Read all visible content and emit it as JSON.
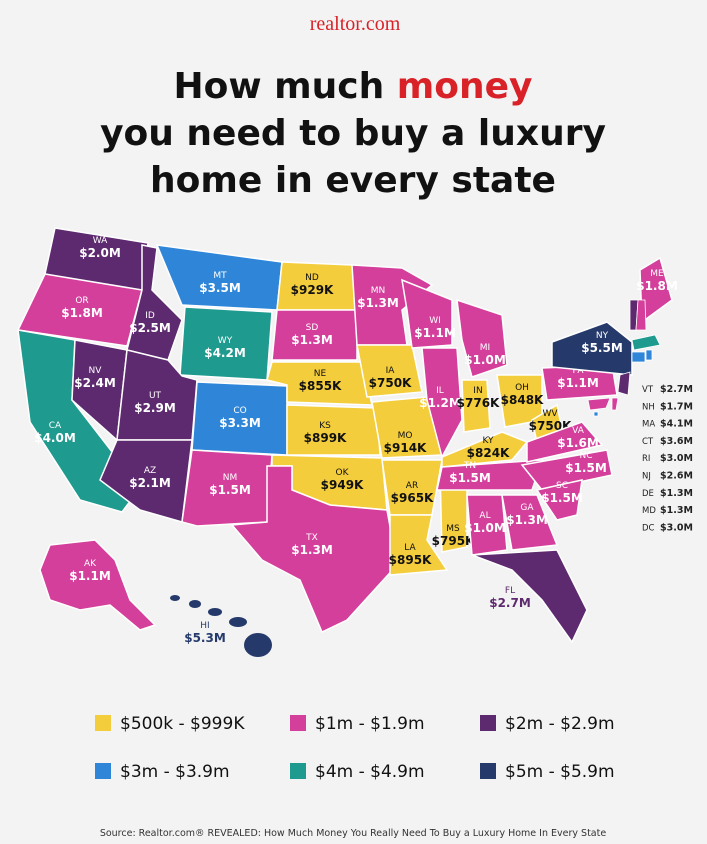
{
  "header": {
    "brand": "realtor.com",
    "title_start": "How much ",
    "title_highlight": "money",
    "title_lines": [
      "you need to buy a luxury",
      "home in every state"
    ]
  },
  "states": [
    {
      "abbr": "WA",
      "value": "$2.0M",
      "color": "#5e2a6f"
    },
    {
      "abbr": "OR",
      "value": "$1.8M",
      "color": "#d43f9b"
    },
    {
      "abbr": "CA",
      "value": "$4.0M",
      "color": "#1f9a8f"
    },
    {
      "abbr": "NV",
      "value": "$2.4M",
      "color": "#5e2a6f"
    },
    {
      "abbr": "ID",
      "value": "$2.5M",
      "color": "#5e2a6f"
    },
    {
      "abbr": "MT",
      "value": "$3.5M",
      "color": "#2f86d8"
    },
    {
      "abbr": "WY",
      "value": "$4.2M",
      "color": "#1f9a8f"
    },
    {
      "abbr": "UT",
      "value": "$2.9M",
      "color": "#5e2a6f"
    },
    {
      "abbr": "CO",
      "value": "$3.3M",
      "color": "#2f86d8"
    },
    {
      "abbr": "AZ",
      "value": "$2.1M",
      "color": "#5e2a6f"
    },
    {
      "abbr": "NM",
      "value": "$1.5M",
      "color": "#d43f9b"
    },
    {
      "abbr": "ND",
      "value": "$929K",
      "color": "#f4cd3c"
    },
    {
      "abbr": "SD",
      "value": "$1.3M",
      "color": "#d43f9b"
    },
    {
      "abbr": "NE",
      "value": "$855K",
      "color": "#f4cd3c"
    },
    {
      "abbr": "KS",
      "value": "$899K",
      "color": "#f4cd3c"
    },
    {
      "abbr": "OK",
      "value": "$949K",
      "color": "#f4cd3c"
    },
    {
      "abbr": "TX",
      "value": "$1.3M",
      "color": "#d43f9b"
    },
    {
      "abbr": "MN",
      "value": "$1.3M",
      "color": "#d43f9b"
    },
    {
      "abbr": "IA",
      "value": "$750K",
      "color": "#f4cd3c"
    },
    {
      "abbr": "MO",
      "value": "$914K",
      "color": "#f4cd3c"
    },
    {
      "abbr": "AR",
      "value": "$965K",
      "color": "#f4cd3c"
    },
    {
      "abbr": "LA",
      "value": "$895K",
      "color": "#f4cd3c"
    },
    {
      "abbr": "WI",
      "value": "$1.1M",
      "color": "#d43f9b"
    },
    {
      "abbr": "IL",
      "value": "$1.2M",
      "color": "#d43f9b"
    },
    {
      "abbr": "MS",
      "value": "$795K",
      "color": "#f4cd3c"
    },
    {
      "abbr": "MI",
      "value": "$1.0M",
      "color": "#d43f9b"
    },
    {
      "abbr": "IN",
      "value": "$776K",
      "color": "#f4cd3c"
    },
    {
      "abbr": "KY",
      "value": "$824K",
      "color": "#f4cd3c"
    },
    {
      "abbr": "TN",
      "value": "$1.5M",
      "color": "#d43f9b"
    },
    {
      "abbr": "AL",
      "value": "$1.0M",
      "color": "#d43f9b"
    },
    {
      "abbr": "GA",
      "value": "$1.3M",
      "color": "#d43f9b"
    },
    {
      "abbr": "FL",
      "value": "$2.7M",
      "color": "#5e2a6f"
    },
    {
      "abbr": "OH",
      "value": "$848K",
      "color": "#f4cd3c"
    },
    {
      "abbr": "WV",
      "value": "$750K",
      "color": "#f4cd3c"
    },
    {
      "abbr": "VA",
      "value": "$1.6M",
      "color": "#d43f9b"
    },
    {
      "abbr": "NC",
      "value": "$1.5M",
      "color": "#d43f9b"
    },
    {
      "abbr": "SC",
      "value": "$1.5M",
      "color": "#d43f9b"
    },
    {
      "abbr": "PA",
      "value": "$1.1M",
      "color": "#d43f9b"
    },
    {
      "abbr": "NY",
      "value": "$5.5M",
      "color": "#253a6b"
    },
    {
      "abbr": "ME",
      "value": "$1.8M",
      "color": "#d43f9b"
    },
    {
      "abbr": "AK",
      "value": "$1.1M",
      "color": "#d43f9b"
    },
    {
      "abbr": "HI",
      "value": "$5.3M",
      "color": "#253a6b"
    }
  ],
  "small_states": [
    {
      "abbr": "VT",
      "value": "$2.7M",
      "color": "#5e2a6f"
    },
    {
      "abbr": "NH",
      "value": "$1.7M",
      "color": "#d43f9b"
    },
    {
      "abbr": "MA",
      "value": "$4.1M",
      "color": "#1f9a8f"
    },
    {
      "abbr": "CT",
      "value": "$3.6M",
      "color": "#2f86d8"
    },
    {
      "abbr": "RI",
      "value": "$3.0M",
      "color": "#2f86d8"
    },
    {
      "abbr": "NJ",
      "value": "$2.6M",
      "color": "#5e2a6f"
    },
    {
      "abbr": "DE",
      "value": "$1.3M",
      "color": "#d43f9b"
    },
    {
      "abbr": "MD",
      "value": "$1.3M",
      "color": "#d43f9b"
    },
    {
      "abbr": "DC",
      "value": "$3.0M",
      "color": "#2f86d8"
    }
  ],
  "legend": [
    {
      "label": "$500k - $999K",
      "color": "#f4cd3c"
    },
    {
      "label": "$1m - $1.9m",
      "color": "#d43f9b"
    },
    {
      "label": "$2m - $2.9m",
      "color": "#5e2a6f"
    },
    {
      "label": "$3m - $3.9m",
      "color": "#2f86d8"
    },
    {
      "label": "$4m - $4.9m",
      "color": "#1f9a8f"
    },
    {
      "label": "$5m - $5.9m",
      "color": "#253a6b"
    }
  ],
  "source": "Source: Realtor.com® REVEALED: How Much Money You Really Need To Buy a Luxury Home In Every State"
}
